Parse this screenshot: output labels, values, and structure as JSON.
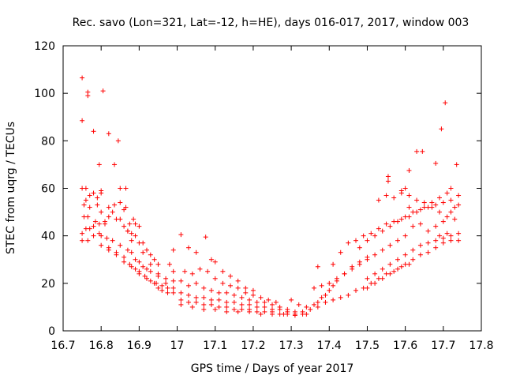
{
  "chart_data": {
    "type": "scatter",
    "title": "Rec. savo (Lon=321, Lat=-12, h=HE), days 016-017, 2017, window 003",
    "xlabel": "GPS time / Days of year 2017",
    "ylabel": "STEC from uqrg / TECUs",
    "xlim": [
      16.7,
      17.8
    ],
    "ylim": [
      0,
      120
    ],
    "xticks": [
      "16.7",
      "16.8",
      "16.9",
      "17",
      "17.1",
      "17.2",
      "17.3",
      "17.4",
      "17.5",
      "17.6",
      "17.7",
      "17.8"
    ],
    "yticks": [
      "0",
      "20",
      "40",
      "60",
      "80",
      "100",
      "120"
    ],
    "grid": false,
    "marker": "plus",
    "color": "#ff0000",
    "series": [
      {
        "name": "STEC",
        "points": [
          [
            16.75,
            106.5
          ],
          [
            16.75,
            88.5
          ],
          [
            16.765,
            100.5
          ],
          [
            16.765,
            99
          ],
          [
            16.78,
            84
          ],
          [
            16.795,
            70
          ],
          [
            16.805,
            101
          ],
          [
            16.82,
            83
          ],
          [
            16.835,
            70
          ],
          [
            16.845,
            80
          ],
          [
            16.85,
            60
          ],
          [
            16.865,
            60
          ],
          [
            16.75,
            60
          ],
          [
            16.76,
            60
          ],
          [
            16.77,
            57
          ],
          [
            16.78,
            58
          ],
          [
            16.8,
            58
          ],
          [
            16.8,
            59
          ],
          [
            16.79,
            56
          ],
          [
            16.76,
            55
          ],
          [
            16.755,
            53
          ],
          [
            16.77,
            52
          ],
          [
            16.79,
            53
          ],
          [
            16.82,
            52
          ],
          [
            16.835,
            53
          ],
          [
            16.85,
            54
          ],
          [
            16.86,
            51
          ],
          [
            16.865,
            52
          ],
          [
            16.875,
            45
          ],
          [
            16.885,
            47
          ],
          [
            16.89,
            45
          ],
          [
            16.9,
            44
          ],
          [
            16.755,
            48
          ],
          [
            16.765,
            48
          ],
          [
            16.785,
            46
          ],
          [
            16.795,
            45
          ],
          [
            16.81,
            46
          ],
          [
            16.82,
            48
          ],
          [
            16.84,
            47
          ],
          [
            16.86,
            44
          ],
          [
            16.87,
            42
          ],
          [
            16.88,
            41
          ],
          [
            16.89,
            40
          ],
          [
            16.9,
            37
          ],
          [
            16.91,
            37
          ],
          [
            16.92,
            34
          ],
          [
            16.93,
            32
          ],
          [
            16.94,
            30
          ],
          [
            16.95,
            28
          ],
          [
            16.75,
            41
          ],
          [
            16.76,
            43
          ],
          [
            16.77,
            43
          ],
          [
            16.78,
            44
          ],
          [
            16.795,
            41
          ],
          [
            16.8,
            40
          ],
          [
            16.815,
            39
          ],
          [
            16.83,
            38
          ],
          [
            16.85,
            36
          ],
          [
            16.87,
            34
          ],
          [
            16.88,
            33
          ],
          [
            16.89,
            30
          ],
          [
            16.9,
            29
          ],
          [
            16.91,
            27
          ],
          [
            16.92,
            26
          ],
          [
            16.93,
            25
          ],
          [
            16.95,
            23
          ],
          [
            16.97,
            22
          ],
          [
            16.99,
            21
          ],
          [
            16.75,
            38
          ],
          [
            16.765,
            38
          ],
          [
            16.78,
            40
          ],
          [
            16.8,
            36
          ],
          [
            16.82,
            35
          ],
          [
            16.84,
            33
          ],
          [
            16.86,
            31
          ],
          [
            16.875,
            28
          ],
          [
            16.89,
            26
          ],
          [
            16.9,
            25
          ],
          [
            16.915,
            23
          ],
          [
            16.93,
            21
          ],
          [
            16.945,
            20
          ],
          [
            16.96,
            19
          ],
          [
            16.975,
            18
          ],
          [
            16.99,
            18
          ],
          [
            16.82,
            34
          ],
          [
            16.84,
            32
          ],
          [
            16.86,
            29
          ],
          [
            16.88,
            27
          ],
          [
            16.9,
            24
          ],
          [
            16.92,
            22
          ],
          [
            16.94,
            20
          ],
          [
            16.95,
            18
          ],
          [
            16.96,
            17
          ],
          [
            16.975,
            16
          ],
          [
            16.99,
            16
          ],
          [
            16.8,
            50
          ],
          [
            16.81,
            45
          ],
          [
            16.83,
            50
          ],
          [
            16.85,
            47
          ],
          [
            16.87,
            42
          ],
          [
            16.88,
            38
          ],
          [
            16.91,
            33
          ],
          [
            16.93,
            28
          ],
          [
            16.95,
            24
          ],
          [
            16.97,
            20
          ],
          [
            16.99,
            25
          ],
          [
            16.99,
            34
          ],
          [
            16.98,
            28
          ],
          [
            17.01,
            40.5
          ],
          [
            17.03,
            35
          ],
          [
            17.05,
            33
          ],
          [
            17.075,
            39.5
          ],
          [
            17.09,
            30
          ],
          [
            17.1,
            29
          ],
          [
            17.12,
            25
          ],
          [
            17.14,
            23
          ],
          [
            17.16,
            21
          ],
          [
            17.18,
            18
          ],
          [
            17.2,
            17
          ],
          [
            17.02,
            25
          ],
          [
            17.04,
            24
          ],
          [
            17.06,
            26
          ],
          [
            17.08,
            25
          ],
          [
            17.1,
            22
          ],
          [
            17.12,
            20
          ],
          [
            17.14,
            19
          ],
          [
            17.16,
            18
          ],
          [
            17.18,
            16
          ],
          [
            17.2,
            15
          ],
          [
            17.22,
            14
          ],
          [
            17.24,
            13
          ],
          [
            17.26,
            12
          ],
          [
            17.01,
            21
          ],
          [
            17.03,
            19
          ],
          [
            17.05,
            20
          ],
          [
            17.07,
            18
          ],
          [
            17.09,
            17
          ],
          [
            17.11,
            16
          ],
          [
            17.13,
            16
          ],
          [
            17.15,
            15
          ],
          [
            17.17,
            14
          ],
          [
            17.19,
            13
          ],
          [
            17.21,
            12
          ],
          [
            17.23,
            12
          ],
          [
            17.25,
            11
          ],
          [
            17.27,
            10
          ],
          [
            17.29,
            9
          ],
          [
            17.01,
            16
          ],
          [
            17.03,
            15
          ],
          [
            17.05,
            14
          ],
          [
            17.07,
            14
          ],
          [
            17.09,
            13
          ],
          [
            17.11,
            13
          ],
          [
            17.13,
            12
          ],
          [
            17.15,
            12
          ],
          [
            17.17,
            11
          ],
          [
            17.19,
            11
          ],
          [
            17.21,
            10
          ],
          [
            17.23,
            10
          ],
          [
            17.25,
            9
          ],
          [
            17.27,
            9
          ],
          [
            17.29,
            8
          ],
          [
            17.31,
            8
          ],
          [
            17.01,
            13
          ],
          [
            17.03,
            12
          ],
          [
            17.05,
            12
          ],
          [
            17.07,
            11
          ],
          [
            17.09,
            11
          ],
          [
            17.11,
            10
          ],
          [
            17.13,
            10
          ],
          [
            17.15,
            9
          ],
          [
            17.17,
            9
          ],
          [
            17.19,
            9
          ],
          [
            17.21,
            8
          ],
          [
            17.23,
            8
          ],
          [
            17.25,
            8
          ],
          [
            17.27,
            7
          ],
          [
            17.29,
            7
          ],
          [
            17.31,
            7
          ],
          [
            17.33,
            7
          ],
          [
            17.01,
            11
          ],
          [
            17.04,
            10
          ],
          [
            17.07,
            9
          ],
          [
            17.1,
            9
          ],
          [
            17.13,
            8
          ],
          [
            17.16,
            8
          ],
          [
            17.19,
            8
          ],
          [
            17.22,
            7
          ],
          [
            17.25,
            7
          ],
          [
            17.28,
            7
          ],
          [
            17.31,
            6.5
          ],
          [
            17.34,
            7
          ],
          [
            17.3,
            13
          ],
          [
            17.32,
            11
          ],
          [
            17.34,
            10
          ],
          [
            17.36,
            11
          ],
          [
            17.37,
            12
          ],
          [
            17.38,
            14
          ],
          [
            17.39,
            15
          ],
          [
            17.4,
            17
          ],
          [
            17.41,
            19
          ],
          [
            17.42,
            21
          ],
          [
            17.44,
            24
          ],
          [
            17.46,
            27
          ],
          [
            17.48,
            29
          ],
          [
            17.5,
            31
          ],
          [
            17.33,
            8
          ],
          [
            17.35,
            9
          ],
          [
            17.37,
            10
          ],
          [
            17.39,
            12
          ],
          [
            17.41,
            13
          ],
          [
            17.43,
            14
          ],
          [
            17.45,
            15
          ],
          [
            17.47,
            17
          ],
          [
            17.49,
            18
          ],
          [
            17.51,
            20
          ],
          [
            17.53,
            22
          ],
          [
            17.55,
            24
          ],
          [
            17.57,
            25
          ],
          [
            17.59,
            27
          ],
          [
            17.61,
            28
          ],
          [
            17.36,
            18
          ],
          [
            17.38,
            19
          ],
          [
            17.4,
            20
          ],
          [
            17.42,
            22
          ],
          [
            17.44,
            24
          ],
          [
            17.46,
            26
          ],
          [
            17.48,
            28
          ],
          [
            17.5,
            30
          ],
          [
            17.52,
            32
          ],
          [
            17.54,
            34
          ],
          [
            17.56,
            36
          ],
          [
            17.58,
            38
          ],
          [
            17.6,
            40
          ],
          [
            17.37,
            27
          ],
          [
            17.41,
            28
          ],
          [
            17.43,
            33
          ],
          [
            17.45,
            37
          ],
          [
            17.47,
            38
          ],
          [
            17.49,
            40
          ],
          [
            17.51,
            41
          ],
          [
            17.53,
            43
          ],
          [
            17.55,
            45
          ],
          [
            17.57,
            46
          ],
          [
            17.59,
            47
          ],
          [
            17.61,
            48
          ],
          [
            17.63,
            50
          ],
          [
            17.65,
            52
          ],
          [
            17.67,
            54
          ],
          [
            17.69,
            56
          ],
          [
            17.71,
            58
          ],
          [
            17.48,
            35
          ],
          [
            17.5,
            38
          ],
          [
            17.52,
            40
          ],
          [
            17.54,
            42
          ],
          [
            17.56,
            44
          ],
          [
            17.58,
            46
          ],
          [
            17.6,
            48
          ],
          [
            17.62,
            50
          ],
          [
            17.64,
            51
          ],
          [
            17.66,
            52
          ],
          [
            17.68,
            53
          ],
          [
            17.7,
            54
          ],
          [
            17.72,
            55
          ],
          [
            17.74,
            57
          ],
          [
            17.5,
            22
          ],
          [
            17.52,
            24
          ],
          [
            17.54,
            26
          ],
          [
            17.56,
            28
          ],
          [
            17.58,
            30
          ],
          [
            17.6,
            32
          ],
          [
            17.62,
            34
          ],
          [
            17.64,
            36
          ],
          [
            17.66,
            37
          ],
          [
            17.68,
            38
          ],
          [
            17.7,
            39
          ],
          [
            17.72,
            40
          ],
          [
            17.74,
            41
          ],
          [
            17.53,
            55
          ],
          [
            17.55,
            57
          ],
          [
            17.57,
            56
          ],
          [
            17.59,
            58
          ],
          [
            17.61,
            57
          ],
          [
            17.63,
            55
          ],
          [
            17.65,
            54
          ],
          [
            17.67,
            52
          ],
          [
            17.69,
            50
          ],
          [
            17.71,
            48
          ],
          [
            17.73,
            47
          ],
          [
            17.555,
            65
          ],
          [
            17.555,
            63
          ],
          [
            17.61,
            67.5
          ],
          [
            17.63,
            75.5
          ],
          [
            17.645,
            75.5
          ],
          [
            17.68,
            70.5
          ],
          [
            17.695,
            85
          ],
          [
            17.705,
            96
          ],
          [
            17.735,
            70
          ],
          [
            17.72,
            60
          ],
          [
            17.6,
            60
          ],
          [
            17.59,
            59
          ],
          [
            17.61,
            52
          ],
          [
            17.64,
            32
          ],
          [
            17.66,
            33
          ],
          [
            17.68,
            35
          ],
          [
            17.7,
            37
          ],
          [
            17.72,
            38
          ],
          [
            17.74,
            38
          ],
          [
            17.62,
            30
          ],
          [
            17.6,
            28
          ],
          [
            17.58,
            26
          ],
          [
            17.56,
            24
          ],
          [
            17.54,
            22
          ],
          [
            17.52,
            20
          ],
          [
            17.5,
            18
          ],
          [
            17.62,
            44
          ],
          [
            17.64,
            45
          ],
          [
            17.66,
            42
          ],
          [
            17.68,
            44
          ],
          [
            17.7,
            46
          ],
          [
            17.72,
            50
          ],
          [
            17.74,
            53
          ],
          [
            17.73,
            52
          ],
          [
            17.71,
            41
          ],
          [
            17.69,
            40
          ]
        ]
      }
    ]
  }
}
